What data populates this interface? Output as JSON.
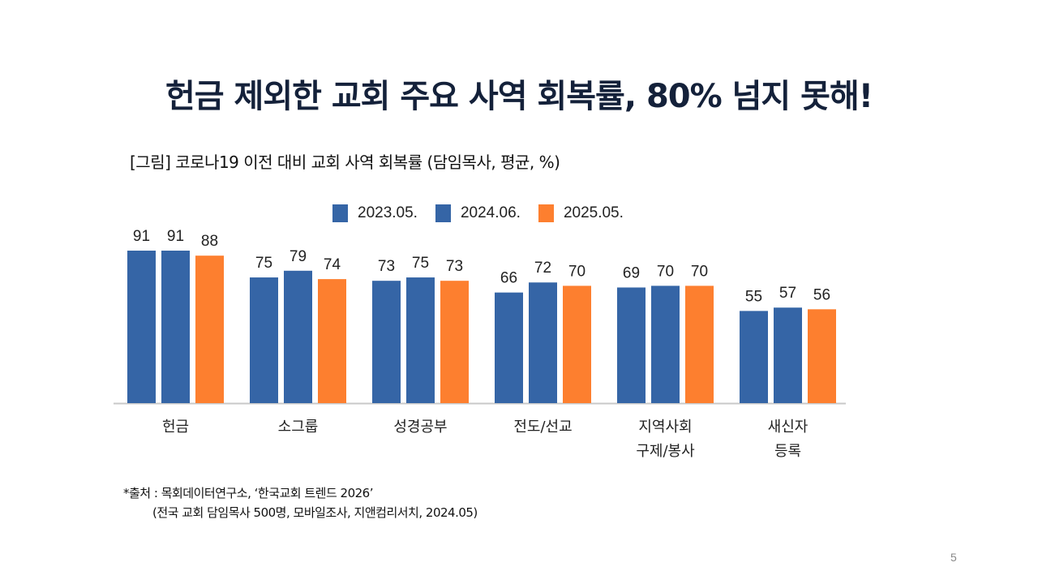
{
  "slide": {
    "title": "헌금 제외한 교회 주요 사역 회복률, 80% 넘지 못해!",
    "subtitle": "[그림] 코로나19 이전 대비 교회 사역 회복률 (담임목사, 평균, %)",
    "source_line1": "*출처 : 목회데이터연구소, ‘한국교회 트렌드 2026’",
    "source_line2": "(전국 교회 담임목사 500명, 모바일조사, 지앤컴리서치, 2024.05)",
    "page_number": "5"
  },
  "chart_data": {
    "type": "bar",
    "title": "",
    "xlabel": "",
    "ylabel": "",
    "ylim": [
      0,
      100
    ],
    "grid": false,
    "legend_position": "top",
    "categories": [
      [
        "헌금"
      ],
      [
        "소그룹"
      ],
      [
        "성경공부"
      ],
      [
        "전도/선교"
      ],
      [
        "지역사회",
        "구제/봉사"
      ],
      [
        "새신자",
        "등록"
      ]
    ],
    "series": [
      {
        "name": "2023.05.",
        "color": "#3565a6",
        "values": [
          91,
          75,
          73,
          66,
          69,
          55
        ]
      },
      {
        "name": "2024.06.",
        "color": "#3565a6",
        "values": [
          91,
          79,
          75,
          72,
          70,
          57
        ]
      },
      {
        "name": "2025.05.",
        "color": "#fd7f2f",
        "values": [
          88,
          74,
          73,
          70,
          70,
          56
        ]
      }
    ],
    "axis_color": "#c8c8c8"
  }
}
